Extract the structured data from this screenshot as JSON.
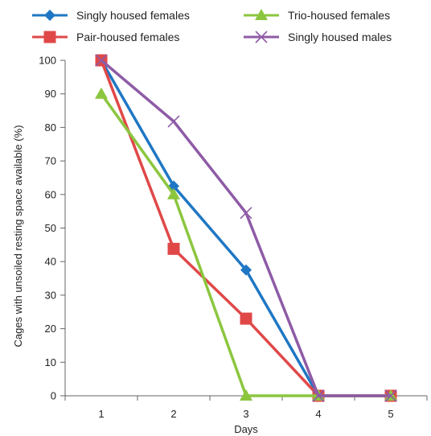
{
  "chart_data": {
    "type": "line",
    "xlabel": "Days",
    "ylabel": "Cages with unsoiled resting space available (%)",
    "x": [
      1,
      2,
      3,
      4,
      5
    ],
    "xlim": [
      0.5,
      5.5
    ],
    "ylim": [
      0,
      100
    ],
    "yticks": [
      0,
      10,
      20,
      30,
      40,
      50,
      60,
      70,
      80,
      90,
      100
    ],
    "grid": false,
    "legend_position": "top",
    "series": [
      {
        "name": "Singly housed females",
        "values": [
          100,
          62.5,
          37.5,
          0,
          0
        ],
        "color": "#1f77c4",
        "marker": "diamond"
      },
      {
        "name": "Pair-housed females",
        "values": [
          100,
          43.8,
          23,
          0,
          0
        ],
        "color": "#e04848",
        "marker": "square"
      },
      {
        "name": "Trio-housed females",
        "values": [
          90,
          60,
          0,
          0,
          0
        ],
        "color": "#8cc63f",
        "marker": "triangle"
      },
      {
        "name": "Singly housed males",
        "values": [
          100,
          81.8,
          54.5,
          0,
          0
        ],
        "color": "#8e5ba6",
        "marker": "x"
      }
    ]
  }
}
